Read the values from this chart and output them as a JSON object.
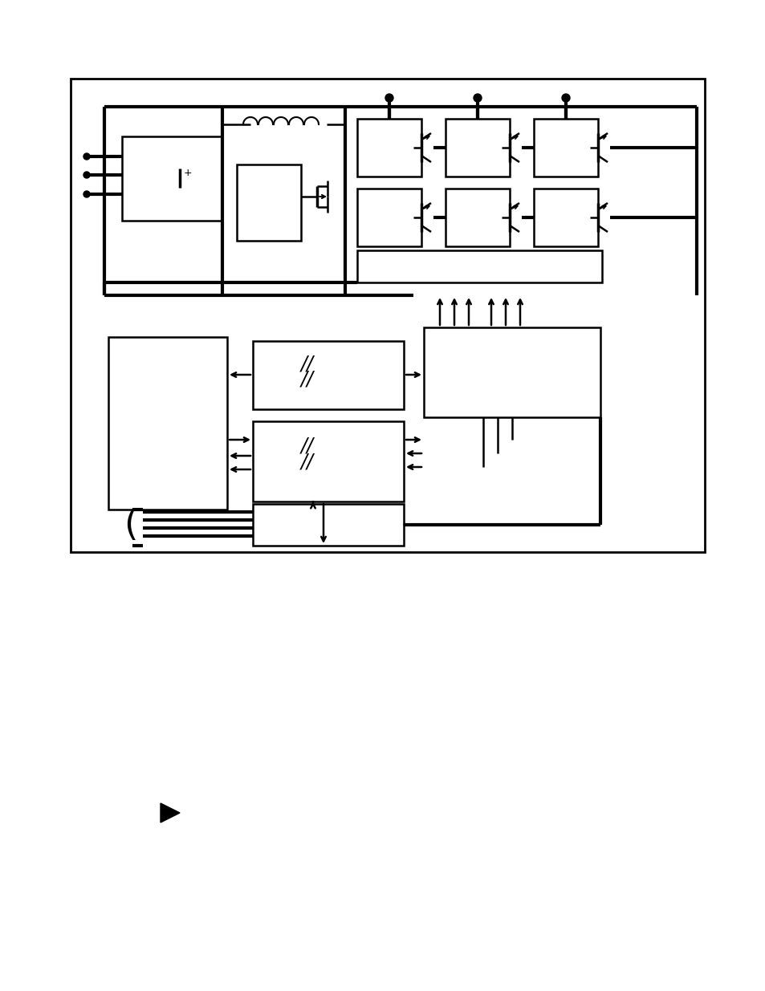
{
  "fig_width": 9.54,
  "fig_height": 12.35,
  "bg_color": "#ffffff",
  "lw_thin": 1.2,
  "lw_med": 1.8,
  "lw_thick": 3.0,
  "lw_frame": 2.0
}
